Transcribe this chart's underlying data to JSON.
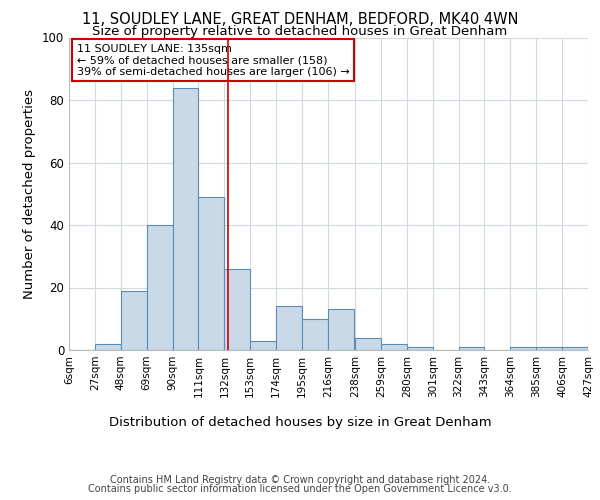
{
  "title1": "11, SOUDLEY LANE, GREAT DENHAM, BEDFORD, MK40 4WN",
  "title2": "Size of property relative to detached houses in Great Denham",
  "xlabel": "Distribution of detached houses by size in Great Denham",
  "ylabel": "Number of detached properties",
  "annotation_line1": "11 SOUDLEY LANE: 135sqm",
  "annotation_line2": "← 59% of detached houses are smaller (158)",
  "annotation_line3": "39% of semi-detached houses are larger (106) →",
  "footer1": "Contains HM Land Registry data © Crown copyright and database right 2024.",
  "footer2": "Contains public sector information licensed under the Open Government Licence v3.0.",
  "bin_edges": [
    6,
    27,
    48,
    69,
    90,
    111,
    132,
    153,
    174,
    195,
    216,
    238,
    259,
    280,
    301,
    322,
    343,
    364,
    385,
    406,
    427
  ],
  "bar_heights": [
    0,
    2,
    19,
    40,
    84,
    49,
    26,
    3,
    14,
    10,
    13,
    4,
    2,
    1,
    0,
    1,
    0,
    1,
    1,
    1
  ],
  "bar_color": "#c9d9e8",
  "bar_edge_color": "#5a8db5",
  "property_size": 135,
  "ylim": [
    0,
    100
  ],
  "tick_labels": [
    "6sqm",
    "27sqm",
    "48sqm",
    "69sqm",
    "90sqm",
    "111sqm",
    "132sqm",
    "153sqm",
    "174sqm",
    "195sqm",
    "216sqm",
    "238sqm",
    "259sqm",
    "280sqm",
    "301sqm",
    "322sqm",
    "343sqm",
    "364sqm",
    "385sqm",
    "406sqm",
    "427sqm"
  ],
  "grid_color": "#d0d8e0",
  "vline_color": "#cc0000",
  "box_color": "#cc0000",
  "title1_fontsize": 10.5,
  "title2_fontsize": 9.5,
  "annotation_fontsize": 8.0,
  "axis_label_fontsize": 9.5,
  "tick_fontsize": 7.5,
  "ytick_fontsize": 8.5,
  "footer_fontsize": 7.0
}
